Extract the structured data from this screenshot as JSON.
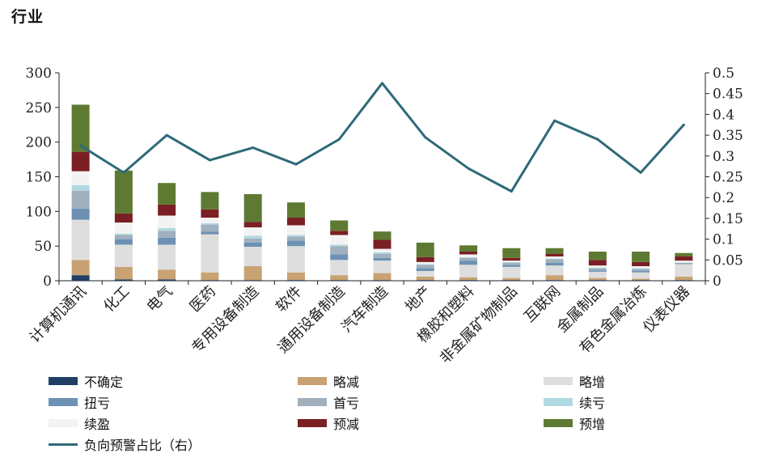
{
  "header": {
    "title": "行业"
  },
  "colors": {
    "uncertain": "#1f3f64",
    "slight_decrease": "#c8a272",
    "slight_increase": "#dedede",
    "turn_loss": "#6d91b4",
    "first_loss": "#a0b0bd",
    "continued_loss": "#b1d9e1",
    "continued_profit": "#f3f3f3",
    "pre_decrease": "#7a1f24",
    "pre_increase": "#5e7a32",
    "negative_ratio": "#2e6a78"
  },
  "chart_data": {
    "type": "bar",
    "stacked": true,
    "categories": [
      "计算机通讯",
      "化工",
      "电气",
      "医药",
      "专用设备制造",
      "软件",
      "通用设备制造",
      "汽车制造",
      "地产",
      "橡胶和塑料",
      "非金属矿物制品",
      "互联网",
      "金属制品",
      "有色金属冶炼",
      "仪表仪器"
    ],
    "series": [
      {
        "name": "不确定",
        "color_key": "uncertain",
        "values": [
          8,
          2,
          2,
          1,
          1,
          1,
          1,
          1,
          1,
          1,
          1,
          1,
          1,
          1,
          1
        ]
      },
      {
        "name": "略减",
        "color_key": "slight_decrease",
        "values": [
          22,
          18,
          14,
          11,
          20,
          11,
          7,
          10,
          5,
          4,
          3,
          7,
          3,
          2,
          5
        ]
      },
      {
        "name": "略增",
        "color_key": "slight_increase",
        "values": [
          58,
          32,
          36,
          55,
          28,
          38,
          22,
          18,
          8,
          18,
          16,
          14,
          9,
          9,
          18
        ]
      },
      {
        "name": "扭亏",
        "color_key": "turn_loss",
        "values": [
          16,
          8,
          10,
          4,
          6,
          8,
          8,
          4,
          4,
          6,
          3,
          4,
          2,
          2,
          1
        ]
      },
      {
        "name": "首亏",
        "color_key": "first_loss",
        "values": [
          26,
          6,
          10,
          10,
          6,
          6,
          12,
          6,
          5,
          4,
          3,
          5,
          3,
          3,
          1
        ]
      },
      {
        "name": "续亏",
        "color_key": "continued_loss",
        "values": [
          8,
          2,
          4,
          2,
          4,
          2,
          2,
          2,
          1,
          1,
          1,
          1,
          1,
          1,
          0
        ]
      },
      {
        "name": "续盈",
        "color_key": "continued_profit",
        "values": [
          20,
          16,
          18,
          8,
          12,
          14,
          14,
          5,
          3,
          4,
          2,
          3,
          3,
          3,
          3
        ]
      },
      {
        "name": "预减",
        "color_key": "pre_decrease",
        "values": [
          28,
          13,
          16,
          12,
          8,
          11,
          6,
          13,
          7,
          4,
          4,
          4,
          8,
          6,
          6
        ]
      },
      {
        "name": "预增",
        "color_key": "pre_increase",
        "values": [
          68,
          62,
          31,
          25,
          40,
          22,
          15,
          12,
          21,
          9,
          14,
          8,
          12,
          15,
          5
        ]
      }
    ],
    "line_series": {
      "name": "负向预警占比（右）",
      "color_key": "negative_ratio",
      "axis": "right",
      "values": [
        0.325,
        0.26,
        0.35,
        0.29,
        0.32,
        0.28,
        0.34,
        0.475,
        0.345,
        0.27,
        0.215,
        0.385,
        0.34,
        0.26,
        0.375
      ]
    },
    "ylim": [
      0,
      300
    ],
    "yticks": [
      0,
      50,
      100,
      150,
      200,
      250,
      300
    ],
    "y2lim": [
      0,
      0.5
    ],
    "y2ticks": [
      0,
      0.05,
      0.1,
      0.15,
      0.2,
      0.25,
      0.3,
      0.35,
      0.4,
      0.45,
      0.5
    ],
    "y2tick_labels": [
      "0",
      "0.05",
      "0.1",
      "0.15",
      "0.2",
      "0.25",
      "0.3",
      "0.35",
      "0.4",
      "0.45",
      "0.5"
    ],
    "legend_position": "bottom"
  },
  "legend": [
    {
      "label": "不确定",
      "color_key": "uncertain",
      "kind": "bar"
    },
    {
      "label": "略减",
      "color_key": "slight_decrease",
      "kind": "bar"
    },
    {
      "label": "略增",
      "color_key": "slight_increase",
      "kind": "bar"
    },
    {
      "label": "扭亏",
      "color_key": "turn_loss",
      "kind": "bar"
    },
    {
      "label": "首亏",
      "color_key": "first_loss",
      "kind": "bar"
    },
    {
      "label": "续亏",
      "color_key": "continued_loss",
      "kind": "bar"
    },
    {
      "label": "续盈",
      "color_key": "continued_profit",
      "kind": "bar"
    },
    {
      "label": "预减",
      "color_key": "pre_decrease",
      "kind": "bar"
    },
    {
      "label": "预增",
      "color_key": "pre_increase",
      "kind": "bar"
    },
    {
      "label": "负向预警占比（右）",
      "color_key": "negative_ratio",
      "kind": "line"
    }
  ]
}
